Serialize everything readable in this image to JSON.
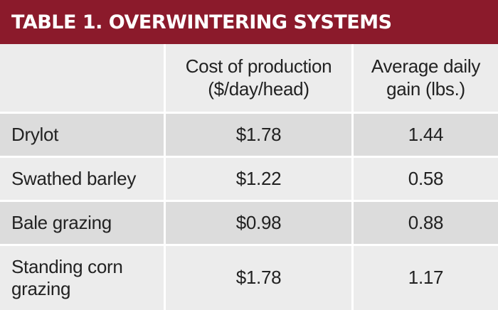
{
  "title": "TABLE 1. OVERWINTERING SYSTEMS",
  "headers": {
    "col1": "",
    "col2_line1": "Cost of production",
    "col2_line2": "($/day/head)",
    "col3_line1": "Average daily",
    "col3_line2": "gain (lbs.)"
  },
  "rows": [
    {
      "label": "Drylot",
      "cost": "$1.78",
      "gain": "1.44"
    },
    {
      "label": "Swathed barley",
      "cost": "$1.22",
      "gain": "0.58"
    },
    {
      "label": "Bale grazing",
      "cost": "$0.98",
      "gain": "0.88"
    },
    {
      "label_line1": "Standing corn",
      "label_line2": "grazing",
      "cost": "$1.78",
      "gain": "1.17"
    }
  ],
  "colors": {
    "title_bg": "#8b1a2b",
    "row_shade": "#dcdcdc",
    "row_light": "#ececec"
  }
}
